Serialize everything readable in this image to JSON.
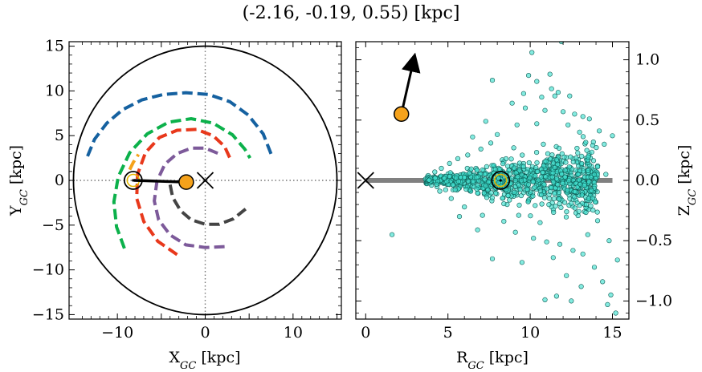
{
  "figure": {
    "title": "(-2.16, -0.19, 0.55) [kpc]"
  },
  "chart_data": [
    {
      "type": "line",
      "title": "",
      "xlabel": "X",
      "xlabel_sub": "GC",
      "xlabel_unit": " [kpc]",
      "ylabel": "Y",
      "ylabel_sub": "GC",
      "ylabel_unit": " [kpc]",
      "xlim": [
        -15.5,
        15.5
      ],
      "ylim": [
        -15.5,
        15.5
      ],
      "xticks": [
        -10,
        -5,
        0,
        5,
        10,
        15
      ],
      "xtick_labels": [
        "−10",
        "",
        "0",
        "",
        "10",
        ""
      ],
      "yticks": [
        -15,
        -10,
        -5,
        0,
        5,
        10,
        15
      ],
      "ytick_labels": [
        "−15",
        "−10",
        "−5",
        "0",
        "5",
        "10",
        "15"
      ],
      "boundary_circle_radius": 15,
      "spiral_arms": [
        {
          "color": "#1561a0",
          "points": [
            [
              -13.4,
              2.7
            ],
            [
              -12.6,
              4.6
            ],
            [
              -11.2,
              6.4
            ],
            [
              -9.4,
              7.9
            ],
            [
              -7.2,
              9.0
            ],
            [
              -4.8,
              9.6
            ],
            [
              -2.2,
              9.8
            ],
            [
              0.4,
              9.6
            ],
            [
              2.8,
              8.8
            ],
            [
              4.9,
              7.3
            ],
            [
              6.6,
              5.2
            ],
            [
              7.6,
              2.7
            ]
          ]
        },
        {
          "color": "#f5a21b",
          "points": [
            [
              -8.6,
              1.2
            ],
            [
              -8.2,
              2.0
            ],
            [
              -7.6,
              2.9
            ]
          ]
        },
        {
          "color": "#0cb14b",
          "points": [
            [
              -9.2,
              -7.6
            ],
            [
              -10.1,
              -5.2
            ],
            [
              -10.4,
              -2.4
            ],
            [
              -9.9,
              0.4
            ],
            [
              -8.6,
              3.1
            ],
            [
              -6.6,
              5.2
            ],
            [
              -4.2,
              6.5
            ],
            [
              -1.6,
              6.9
            ],
            [
              0.9,
              6.4
            ],
            [
              3.1,
              5.1
            ],
            [
              4.5,
              3.5
            ],
            [
              5.1,
              2.5
            ]
          ]
        },
        {
          "color": "#e8381b",
          "points": [
            [
              -3.2,
              -8.3
            ],
            [
              -5.4,
              -6.8
            ],
            [
              -7.0,
              -4.6
            ],
            [
              -7.8,
              -2.0
            ],
            [
              -7.7,
              0.7
            ],
            [
              -6.8,
              3.1
            ],
            [
              -5.2,
              4.8
            ],
            [
              -3.2,
              5.6
            ],
            [
              -1.0,
              5.7
            ],
            [
              0.9,
              5.0
            ],
            [
              2.2,
              3.8
            ],
            [
              2.9,
              2.3
            ]
          ]
        },
        {
          "color": "#7d5a9a",
          "points": [
            [
              2.2,
              -7.4
            ],
            [
              0.0,
              -7.5
            ],
            [
              -2.2,
              -7.2
            ],
            [
              -4.0,
              -6.1
            ],
            [
              -5.3,
              -4.4
            ],
            [
              -5.8,
              -2.3
            ],
            [
              -5.5,
              -0.1
            ],
            [
              -4.6,
              1.8
            ],
            [
              -3.2,
              3.0
            ],
            [
              -1.6,
              3.6
            ],
            [
              0.0,
              3.6
            ],
            [
              1.5,
              3.0
            ]
          ]
        },
        {
          "color": "#444444",
          "points": [
            [
              4.6,
              -3.2
            ],
            [
              3.2,
              -4.3
            ],
            [
              1.6,
              -4.9
            ],
            [
              0.0,
              -4.9
            ],
            [
              -1.6,
              -4.4
            ],
            [
              -2.8,
              -3.4
            ],
            [
              -3.7,
              -1.9
            ],
            [
              -4.1,
              0.0
            ]
          ]
        }
      ],
      "sun": [
        -8.2,
        0.0
      ],
      "galactic_center": [
        0.0,
        0.0
      ],
      "star": [
        -2.16,
        -0.19
      ],
      "star_color": "#f5a21b"
    },
    {
      "type": "scatter",
      "title": "",
      "xlabel": "R",
      "xlabel_sub": "GC",
      "xlabel_unit": " [kpc]",
      "ylabel": "Z",
      "ylabel_sub": "GC",
      "ylabel_unit": " [kpc]",
      "xlim": [
        -0.6,
        16.0
      ],
      "ylim": [
        -1.15,
        1.15
      ],
      "xticks": [
        0,
        5,
        10,
        15
      ],
      "xtick_labels": [
        "0",
        "5",
        "10",
        "15"
      ],
      "yticks": [
        -1.0,
        -0.5,
        0.0,
        0.5,
        1.0
      ],
      "ytick_labels": [
        "−1.0",
        "−0.5",
        "0.0",
        "0.5",
        "1.0"
      ],
      "disk_plane": {
        "x": [
          0,
          15
        ],
        "z": 0.0
      },
      "galactic_center": [
        0.0,
        0.0
      ],
      "sun": [
        8.2,
        0.0
      ],
      "star": [
        2.17,
        0.55
      ],
      "star_color": "#f5a21b",
      "velocity_arrow_tip": [
        2.95,
        1.06
      ],
      "point_color": "#40e0d0",
      "scatter_points": [
        [
          10.1,
          1.06
        ],
        [
          11.9,
          1.15
        ],
        [
          9.9,
          0.87
        ],
        [
          10.4,
          0.82
        ],
        [
          7.7,
          0.83
        ],
        [
          11.3,
          0.76
        ],
        [
          11.7,
          0.73
        ],
        [
          10.7,
          0.69
        ],
        [
          11.5,
          0.7
        ],
        [
          8.9,
          0.64
        ],
        [
          9.7,
          0.6
        ],
        [
          10.9,
          0.58
        ],
        [
          12.0,
          0.57
        ],
        [
          12.7,
          0.55
        ],
        [
          13.2,
          0.53
        ],
        [
          13.6,
          0.51
        ],
        [
          12.3,
          0.46
        ],
        [
          10.4,
          0.47
        ],
        [
          9.2,
          0.46
        ],
        [
          14.2,
          0.41
        ],
        [
          15.0,
          0.37
        ],
        [
          14.5,
          0.3
        ],
        [
          13.8,
          0.29
        ],
        [
          8.0,
          0.38
        ],
        [
          7.6,
          0.31
        ],
        [
          7.0,
          0.26
        ],
        [
          6.2,
          0.21
        ],
        [
          5.6,
          0.18
        ],
        [
          5.1,
          0.14
        ],
        [
          4.6,
          0.1
        ],
        [
          4.2,
          0.07
        ],
        [
          3.8,
          0.04
        ],
        [
          4.0,
          -0.04
        ],
        [
          4.5,
          -0.09
        ],
        [
          5.2,
          -0.15
        ],
        [
          6.0,
          -0.22
        ],
        [
          7.1,
          -0.29
        ],
        [
          8.4,
          -0.34
        ],
        [
          9.1,
          -0.43
        ],
        [
          10.2,
          -0.48
        ],
        [
          11.0,
          -0.51
        ],
        [
          11.8,
          -0.53
        ],
        [
          12.6,
          -0.58
        ],
        [
          13.2,
          -0.61
        ],
        [
          13.9,
          -0.72
        ],
        [
          12.2,
          -0.79
        ],
        [
          14.4,
          -0.84
        ],
        [
          14.9,
          -0.95
        ],
        [
          13.1,
          -0.88
        ],
        [
          11.6,
          -0.96
        ],
        [
          10.9,
          -0.99
        ],
        [
          15.2,
          -1.1
        ],
        [
          14.7,
          -1.03
        ],
        [
          12.5,
          -1.0
        ],
        [
          7.7,
          -0.65
        ],
        [
          1.6,
          -0.45
        ],
        [
          9.5,
          -0.68
        ],
        [
          11.4,
          -0.64
        ],
        [
          10.6,
          -0.35
        ],
        [
          13.5,
          -0.45
        ],
        [
          14.8,
          -0.5
        ],
        [
          15.3,
          -0.66
        ],
        [
          6.8,
          -0.41
        ],
        [
          5.7,
          -0.3
        ],
        [
          7.3,
          0.49
        ],
        [
          6.5,
          0.36
        ],
        [
          13.0,
          0.4
        ],
        [
          12.4,
          0.7
        ],
        [
          11.2,
          0.88
        ],
        [
          9.6,
          0.72
        ],
        [
          14.1,
          0.12
        ],
        [
          14.6,
          0.05
        ],
        [
          14.0,
          -0.18
        ],
        [
          13.3,
          -0.26
        ],
        [
          9.0,
          0.27
        ],
        [
          10.8,
          0.3
        ],
        [
          11.7,
          0.2
        ],
        [
          12.6,
          0.18
        ],
        [
          12.9,
          -0.12
        ],
        [
          11.3,
          -0.22
        ],
        [
          8.6,
          -0.2
        ],
        [
          9.9,
          -0.11
        ],
        [
          7.8,
          0.12
        ],
        [
          6.9,
          -0.06
        ],
        [
          5.9,
          0.05
        ],
        [
          8.3,
          0.17
        ],
        [
          10.3,
          0.09
        ],
        [
          11.8,
          -0.07
        ],
        [
          13.6,
          -0.02
        ],
        [
          9.3,
          -0.29
        ]
      ]
    }
  ]
}
